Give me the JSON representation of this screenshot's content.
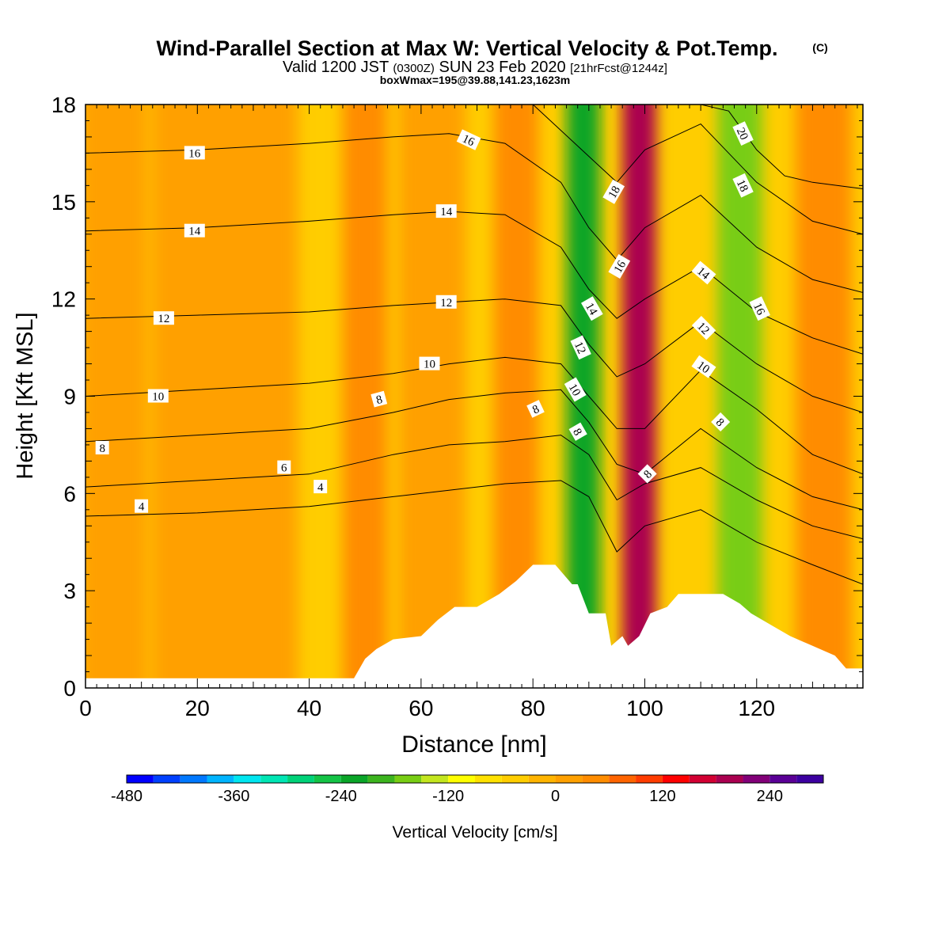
{
  "chart_data": {
    "type": "heatmap",
    "title": "Wind-Parallel Section at Max W: Vertical Velocity & Pot.Temp.",
    "title_mark": "(C)",
    "subtitle_parts": [
      "Valid 1200 JST",
      "(0300Z)",
      "SUN 23 Feb 2020",
      "[21hrFcst@1244z]"
    ],
    "subtitle2": "boxWmax=195@39.88,141.23,1623m",
    "xlabel": "Distance [nm]",
    "ylabel": "Height [Kft MSL]",
    "xlim": [
      0,
      139
    ],
    "ylim": [
      0,
      18
    ],
    "x_ticks": [
      "0",
      "20",
      "40",
      "60",
      "80",
      "100",
      "120"
    ],
    "x_tick_values": [
      0,
      20,
      40,
      60,
      80,
      100,
      120
    ],
    "y_ticks": [
      "0",
      "3",
      "6",
      "9",
      "12",
      "15",
      "18"
    ],
    "y_tick_values": [
      0,
      3,
      6,
      9,
      12,
      15,
      18
    ],
    "colorbar": {
      "label": "Vertical Velocity [cm/s]",
      "tick_labels": [
        "-480",
        "-360",
        "-240",
        "-120",
        "0",
        "120",
        "240"
      ],
      "tick_values": [
        -480,
        -360,
        -240,
        -120,
        0,
        120,
        240
      ],
      "levels": [
        -480,
        -450,
        -420,
        -390,
        -360,
        -330,
        -300,
        -270,
        -240,
        -210,
        -180,
        -150,
        -120,
        -90,
        -60,
        -30,
        0,
        30,
        60,
        90,
        120,
        150,
        180,
        210,
        240,
        270,
        300
      ],
      "colors": [
        "#0000ff",
        "#0040ff",
        "#0078ff",
        "#00b4ff",
        "#00e6f0",
        "#00e6b4",
        "#00d278",
        "#14c346",
        "#0aa528",
        "#3cb41e",
        "#78cd14",
        "#c3e61e",
        "#ffff00",
        "#ffe100",
        "#ffcd00",
        "#ffb400",
        "#ffa000",
        "#ff8c00",
        "#ff6400",
        "#ff3c00",
        "#ff0000",
        "#d20032",
        "#aa0050",
        "#820078",
        "#5a0096",
        "#3c00a0"
      ]
    },
    "terrain": {
      "x": [
        0,
        48,
        49,
        50,
        52,
        55,
        60,
        63,
        66,
        70,
        74,
        77,
        80,
        81,
        82,
        84,
        87,
        88,
        90,
        91,
        93,
        94,
        96,
        97,
        99,
        101,
        104,
        106,
        108,
        110,
        114,
        117,
        119,
        123,
        126,
        130,
        134,
        136,
        139
      ],
      "y": [
        0.3,
        0.3,
        0.6,
        0.9,
        1.2,
        1.5,
        1.6,
        2.1,
        2.5,
        2.5,
        2.9,
        3.3,
        3.8,
        3.8,
        3.8,
        3.8,
        3.2,
        3.2,
        2.3,
        2.3,
        2.3,
        1.3,
        1.6,
        1.3,
        1.6,
        2.3,
        2.5,
        2.9,
        2.9,
        2.9,
        2.9,
        2.6,
        2.3,
        1.9,
        1.6,
        1.3,
        1.0,
        0.6,
        0.6
      ]
    },
    "vertical_velocity_bands": [
      {
        "x_center": 5,
        "half_width": 6,
        "value": 10
      },
      {
        "x_center": 20,
        "half_width": 8,
        "value": 0
      },
      {
        "x_center": 32,
        "half_width": 6,
        "value": 15
      },
      {
        "x_center": 50,
        "half_width": 4,
        "value": 45
      },
      {
        "x_center": 62,
        "half_width": 6,
        "value": 0
      },
      {
        "x_center": 77,
        "half_width": 4,
        "value": 50
      },
      {
        "x_center": 89,
        "half_width": 3,
        "value": -230
      },
      {
        "x_center": 99,
        "half_width": 3,
        "value": 200
      },
      {
        "x_center": 117,
        "half_width": 4,
        "value": -165
      },
      {
        "x_center": 132,
        "half_width": 5,
        "value": 30
      }
    ],
    "pot_temp_contours": [
      {
        "label": "4",
        "x": [
          0,
          20,
          40,
          55,
          65,
          75,
          85,
          90,
          95,
          100,
          110,
          120,
          130,
          139
        ],
        "y": [
          5.3,
          5.4,
          5.6,
          5.9,
          6.1,
          6.3,
          6.4,
          5.9,
          4.2,
          5.0,
          5.5,
          4.5,
          3.8,
          3.2
        ]
      },
      {
        "label": "6",
        "x": [
          0,
          20,
          40,
          55,
          65,
          75,
          85,
          90,
          95,
          100,
          110,
          120,
          130,
          139
        ],
        "y": [
          6.2,
          6.4,
          6.6,
          7.2,
          7.5,
          7.6,
          7.8,
          7.2,
          5.8,
          6.3,
          6.8,
          5.8,
          5.0,
          4.6
        ]
      },
      {
        "label": "8",
        "x": [
          0,
          20,
          40,
          55,
          65,
          75,
          85,
          90,
          95,
          100,
          110,
          120,
          130,
          139
        ],
        "y": [
          7.6,
          7.8,
          8.0,
          8.5,
          8.9,
          9.1,
          9.2,
          8.2,
          6.9,
          6.6,
          8.0,
          6.8,
          5.9,
          5.5
        ]
      },
      {
        "label": "10",
        "x": [
          0,
          20,
          40,
          55,
          65,
          75,
          85,
          90,
          95,
          100,
          110,
          120,
          130,
          139
        ],
        "y": [
          9.0,
          9.2,
          9.4,
          9.7,
          10.0,
          10.2,
          10.0,
          9.0,
          8.0,
          8.0,
          9.8,
          8.6,
          7.2,
          6.6
        ]
      },
      {
        "label": "12",
        "x": [
          0,
          20,
          40,
          55,
          65,
          75,
          85,
          90,
          95,
          100,
          110,
          120,
          130,
          139
        ],
        "y": [
          11.4,
          11.5,
          11.6,
          11.8,
          11.9,
          12.0,
          11.8,
          10.6,
          9.6,
          10.0,
          11.3,
          10.0,
          9.0,
          8.5
        ]
      },
      {
        "label": "14",
        "x": [
          0,
          20,
          40,
          55,
          65,
          75,
          85,
          90,
          95,
          100,
          110,
          120,
          130,
          139
        ],
        "y": [
          14.1,
          14.2,
          14.4,
          14.6,
          14.7,
          14.6,
          13.6,
          12.3,
          11.4,
          12.0,
          13.0,
          11.6,
          10.8,
          10.3
        ]
      },
      {
        "label": "16",
        "x": [
          0,
          20,
          40,
          55,
          65,
          75,
          85,
          90,
          95,
          100,
          110,
          120,
          130,
          139
        ],
        "y": [
          16.5,
          16.6,
          16.8,
          17.0,
          17.1,
          16.8,
          15.6,
          14.2,
          13.2,
          14.2,
          15.2,
          13.6,
          12.6,
          12.2
        ]
      },
      {
        "label": "18",
        "x": [
          80,
          85,
          90,
          95,
          100,
          110,
          120,
          130,
          139
        ],
        "y": [
          18.0,
          17.2,
          16.4,
          15.6,
          16.6,
          17.4,
          15.6,
          14.4,
          14.0
        ]
      },
      {
        "label": "20",
        "x": [
          110,
          115,
          120,
          125,
          130,
          139
        ],
        "y": [
          18.0,
          17.8,
          16.6,
          15.8,
          15.6,
          15.4
        ]
      }
    ],
    "contour_labels": [
      {
        "text": "16",
        "x": 19.5,
        "y": 16.5,
        "angle": 0
      },
      {
        "text": "14",
        "x": 19.5,
        "y": 14.1,
        "angle": 0
      },
      {
        "text": "12",
        "x": 14,
        "y": 11.4,
        "angle": 0
      },
      {
        "text": "10",
        "x": 13,
        "y": 9.0,
        "angle": 0
      },
      {
        "text": "8",
        "x": 3,
        "y": 7.4,
        "angle": 0
      },
      {
        "text": "4",
        "x": 10,
        "y": 5.6,
        "angle": 0
      },
      {
        "text": "6",
        "x": 35.5,
        "y": 6.8,
        "angle": 0
      },
      {
        "text": "4",
        "x": 42,
        "y": 6.2,
        "angle": 0
      },
      {
        "text": "8",
        "x": 52.5,
        "y": 8.9,
        "angle": -15
      },
      {
        "text": "10",
        "x": 61.5,
        "y": 10.0,
        "angle": 0
      },
      {
        "text": "12",
        "x": 64.5,
        "y": 11.9,
        "angle": 0
      },
      {
        "text": "14",
        "x": 64.5,
        "y": 14.7,
        "angle": 0
      },
      {
        "text": "16",
        "x": 68.5,
        "y": 16.9,
        "angle": 25
      },
      {
        "text": "8",
        "x": 80.5,
        "y": 8.6,
        "angle": -25
      },
      {
        "text": "14",
        "x": 90.5,
        "y": 11.7,
        "angle": 60
      },
      {
        "text": "12",
        "x": 88.5,
        "y": 10.5,
        "angle": 65
      },
      {
        "text": "10",
        "x": 87.5,
        "y": 9.2,
        "angle": 60
      },
      {
        "text": "8",
        "x": 88,
        "y": 7.9,
        "angle": 60
      },
      {
        "text": "18",
        "x": 94.5,
        "y": 15.3,
        "angle": -60
      },
      {
        "text": "16",
        "x": 95.5,
        "y": 13.0,
        "angle": -60
      },
      {
        "text": "8",
        "x": 100.5,
        "y": 6.6,
        "angle": -45
      },
      {
        "text": "14",
        "x": 110.5,
        "y": 12.8,
        "angle": 40
      },
      {
        "text": "12",
        "x": 110.5,
        "y": 11.1,
        "angle": 45
      },
      {
        "text": "10",
        "x": 110.5,
        "y": 9.9,
        "angle": 35
      },
      {
        "text": "8",
        "x": 113.5,
        "y": 8.2,
        "angle": 45
      },
      {
        "text": "20",
        "x": 117.5,
        "y": 17.1,
        "angle": 65
      },
      {
        "text": "18",
        "x": 117.5,
        "y": 15.5,
        "angle": 65
      },
      {
        "text": "16",
        "x": 120.5,
        "y": 11.7,
        "angle": 65
      }
    ]
  }
}
